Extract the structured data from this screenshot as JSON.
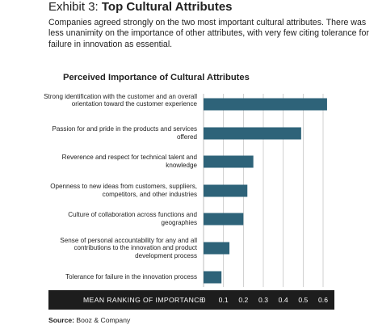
{
  "exhibit": {
    "label": "Exhibit 3:",
    "title": "Top Cultural Attributes"
  },
  "intro": "Companies agreed strongly on the two most important cultural attributes. There was less unanimity on the importance of other attributes, with very few citing tolerance for failure in innovation as essential.",
  "source": {
    "label": "Source:",
    "text": "Booz & Company"
  },
  "colors": {
    "bar": "#2e6379",
    "grid": "#bdbdbd",
    "band": "#1d1d1d"
  },
  "chart_data": {
    "type": "bar",
    "orientation": "horizontal",
    "title": "Perceived Importance of Cultural Attributes",
    "xlabel": "MEAN RANKING OF IMPORTANCE",
    "xlim": [
      0,
      0.6
    ],
    "xticks": [
      "0",
      "0.1",
      "0.2",
      "0.3",
      "0.4",
      "0.5",
      "0.6"
    ],
    "grid": true,
    "categories": [
      "Strong identification with the customer and an overall orientation toward the customer experience",
      "Passion for and pride in the products and services offered",
      "Reverence and respect for technical talent and knowledge",
      "Openness to new ideas from customers, suppliers, competitors, and other industries",
      "Culture of collaboration across functions and geographies",
      "Sense of personal accountability for any and all contributions to the innovation and product development process",
      "Tolerance for failure in the innovation process"
    ],
    "values": [
      0.62,
      0.49,
      0.25,
      0.22,
      0.2,
      0.13,
      0.09
    ]
  }
}
